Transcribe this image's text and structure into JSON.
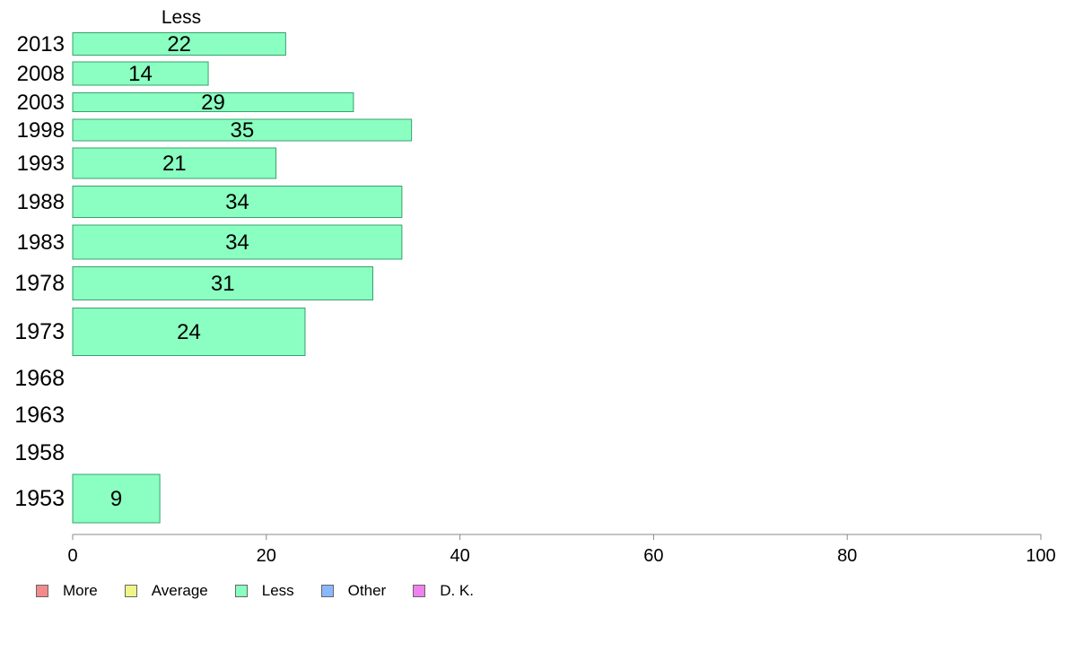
{
  "chart_data": {
    "type": "bar",
    "orientation": "horizontal",
    "title": "Less",
    "categories": [
      "2013",
      "2008",
      "2003",
      "1998",
      "1993",
      "1988",
      "1983",
      "1978",
      "1973",
      "1968",
      "1963",
      "1958",
      "1953"
    ],
    "series": [
      {
        "name": "Less",
        "values": [
          22,
          14,
          29,
          35,
          21,
          34,
          34,
          31,
          24,
          null,
          null,
          null,
          9
        ]
      }
    ],
    "data_labels": [
      "22",
      "14",
      "29",
      "35",
      "21",
      "34",
      "34",
      "31",
      "24",
      "",
      "",
      "",
      "9"
    ],
    "xlim": [
      0,
      100
    ],
    "x_ticks": [
      "0",
      "20",
      "40",
      "60",
      "80",
      "100"
    ],
    "xlabel": "",
    "ylabel": "",
    "grid": false,
    "legend_position": "bottom-left",
    "legend": [
      {
        "name": "More",
        "color": "#f28b8b"
      },
      {
        "name": "Average",
        "color": "#f0f58a"
      },
      {
        "name": "Less",
        "color": "#8affc1"
      },
      {
        "name": "Other",
        "color": "#8ab8ff"
      },
      {
        "name": "D. K.",
        "color": "#ee82ee"
      }
    ],
    "bar_color": "#8affc1",
    "bar_border_color": "#3aa070",
    "axis_color": "#888888"
  }
}
